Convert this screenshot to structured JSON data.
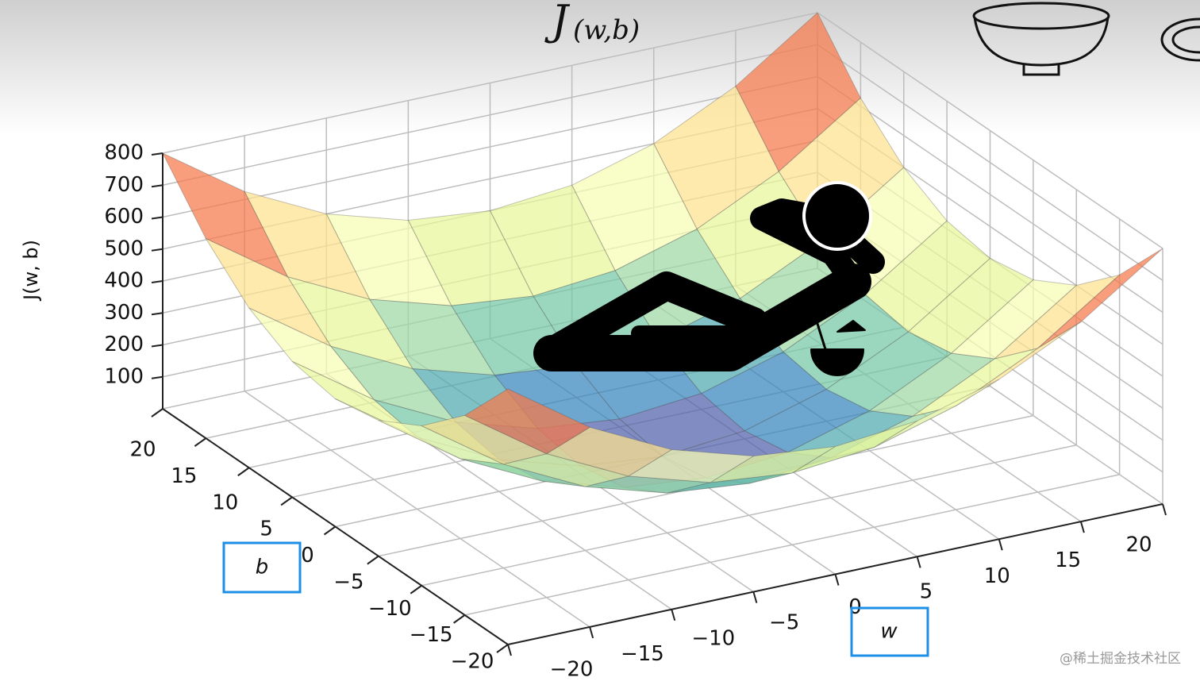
{
  "chart_data": {
    "type": "surface",
    "title": "J",
    "title_subscript": "(w,b)",
    "xlabel": "w",
    "ylabel": "b",
    "zlabel": "J(w, b)",
    "x": [
      -20,
      -15,
      -10,
      -5,
      0,
      5,
      10,
      15,
      20
    ],
    "y": [
      -20,
      -15,
      -10,
      -5,
      0,
      5,
      10,
      15,
      20
    ],
    "z": [
      [
        800,
        625,
        500,
        425,
        400,
        425,
        500,
        625,
        800
      ],
      [
        625,
        450,
        325,
        250,
        225,
        250,
        325,
        450,
        625
      ],
      [
        500,
        325,
        200,
        125,
        100,
        125,
        200,
        325,
        500
      ],
      [
        425,
        250,
        125,
        50,
        25,
        50,
        125,
        250,
        425
      ],
      [
        400,
        225,
        100,
        25,
        0,
        25,
        100,
        225,
        400
      ],
      [
        425,
        250,
        125,
        50,
        25,
        50,
        125,
        250,
        425
      ],
      [
        500,
        325,
        200,
        125,
        100,
        125,
        200,
        325,
        500
      ],
      [
        625,
        450,
        325,
        250,
        225,
        250,
        325,
        450,
        625
      ],
      [
        800,
        625,
        500,
        425,
        400,
        425,
        500,
        625,
        800
      ]
    ],
    "colormap": "Spectral_r",
    "xlim": [
      -20,
      20
    ],
    "ylim": [
      -20,
      20
    ],
    "zlim": [
      0,
      800
    ],
    "xticks": [
      {
        "value": -20,
        "label": "−20"
      },
      {
        "value": -15,
        "label": "−15"
      },
      {
        "value": -10,
        "label": "−10"
      },
      {
        "value": -5,
        "label": "−5"
      },
      0,
      5,
      10,
      15,
      20
    ],
    "yticks": [
      {
        "value": -20,
        "label": "−20"
      },
      {
        "value": -15,
        "label": "−15"
      },
      {
        "value": -10,
        "label": "−10"
      },
      {
        "value": -5,
        "label": "−5"
      },
      0,
      5,
      10,
      15,
      20
    ],
    "zticks": [
      100,
      200,
      300,
      400,
      500,
      600,
      700,
      800
    ],
    "grid": true
  },
  "watermark": "@稀土掘金技术社区"
}
